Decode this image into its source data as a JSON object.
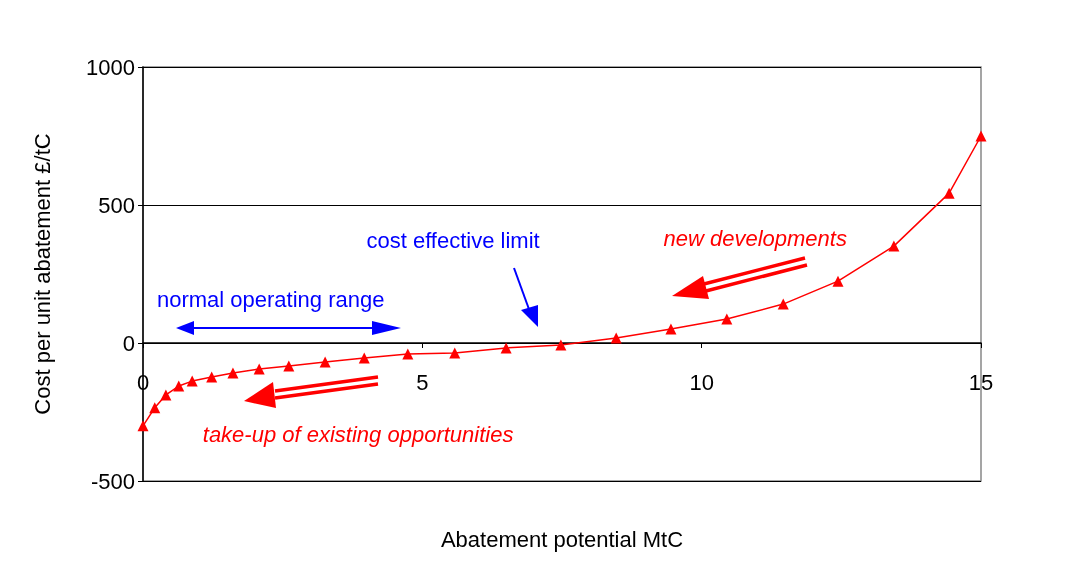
{
  "chart_data": {
    "type": "line",
    "xlabel": "Abatement potential MtC",
    "ylabel": "Cost per unit abatement £/tC",
    "x": [
      0,
      0.21,
      0.41,
      0.64,
      0.88,
      1.23,
      1.61,
      2.08,
      2.61,
      3.26,
      3.96,
      4.74,
      5.58,
      6.5,
      7.48,
      8.47,
      9.45,
      10.45,
      11.46,
      12.44,
      13.44,
      14.43,
      15
    ],
    "series": [
      {
        "color": "#ff0000",
        "values": [
          -300,
          -235,
          -188,
          -156,
          -138,
          -123,
          -109,
          -94,
          -83,
          -69,
          -54,
          -40,
          -36,
          -18,
          -7,
          18,
          51,
          87,
          141,
          224,
          351,
          543,
          750
        ]
      }
    ],
    "xlim": [
      0,
      15
    ],
    "xticks": [
      0,
      5,
      10,
      15
    ],
    "ylim": [
      -500,
      1000
    ],
    "yticks": [
      -500,
      0,
      500,
      1000
    ],
    "grid": "y",
    "marker": "triangle",
    "line_style": "solid",
    "annotations": [
      "normal operating range",
      "cost effective limit",
      "new developments",
      "take-up of existing opportunities"
    ]
  }
}
